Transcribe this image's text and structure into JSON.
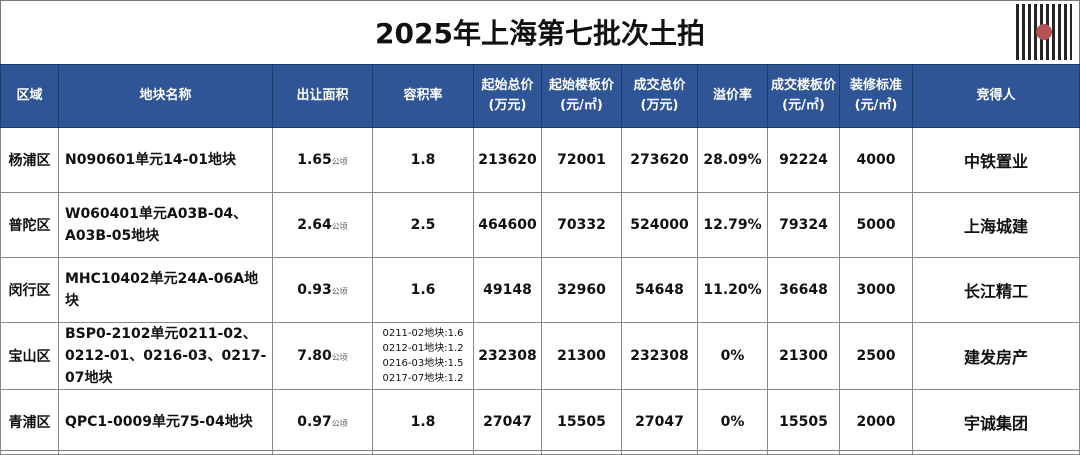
{
  "title": "2025年上海第七批次土拍",
  "unit_area": "公顷",
  "headers": [
    "区域",
    "地块名称",
    "出让面积",
    "容积率",
    "起始总价\n(万元)",
    "起始楼板价\n(元/㎡)",
    "成交总价\n(万元)",
    "溢价率",
    "成交楼板价\n(元/㎡)",
    "装修标准\n(元/㎡)",
    "竞得人"
  ],
  "rows": [
    {
      "district": "杨浦区",
      "name": "N090601单元14-01地块",
      "area": "1.65",
      "far": [
        "1.8"
      ],
      "start_total": "213620",
      "start_floor": "72001",
      "deal_total": "273620",
      "premium": "28.09%",
      "deal_floor": "92224",
      "decor": "4000",
      "winner": "中铁置业"
    },
    {
      "district": "普陀区",
      "name": "W060401单元A03B-04、A03B-05地块",
      "area": "2.64",
      "far": [
        "2.5"
      ],
      "start_total": "464600",
      "start_floor": "70332",
      "deal_total": "524000",
      "premium": "12.79%",
      "deal_floor": "79324",
      "decor": "5000",
      "winner": "上海城建"
    },
    {
      "district": "闵行区",
      "name": "MHC10402单元24A-06A地块",
      "area": "0.93",
      "far": [
        "1.6"
      ],
      "start_total": "49148",
      "start_floor": "32960",
      "deal_total": "54648",
      "premium": "11.20%",
      "deal_floor": "36648",
      "decor": "3000",
      "winner": "长江精工"
    },
    {
      "district": "宝山区",
      "name": "BSP0-2102单元0211-02、0212-01、0216-03、0217-07地块",
      "area": "7.80",
      "far": [
        "0211-02地块:1.6",
        "0212-01地块:1.2",
        "0216-03地块:1.5",
        "0217-07地块:1.2"
      ],
      "start_total": "232308",
      "start_floor": "21300",
      "deal_total": "232308",
      "premium": "0%",
      "deal_floor": "21300",
      "decor": "2500",
      "winner": "建发房产"
    },
    {
      "district": "青浦区",
      "name": "QPC1-0009单元75-04地块",
      "area": "0.97",
      "far": [
        "1.8"
      ],
      "start_total": "27047",
      "start_floor": "15505",
      "deal_total": "27047",
      "premium": "0%",
      "deal_floor": "15505",
      "decor": "2000",
      "winner": "宇诚集团"
    }
  ],
  "colors": {
    "header_bg": "#2f5597",
    "header_text": "#ffffff"
  }
}
